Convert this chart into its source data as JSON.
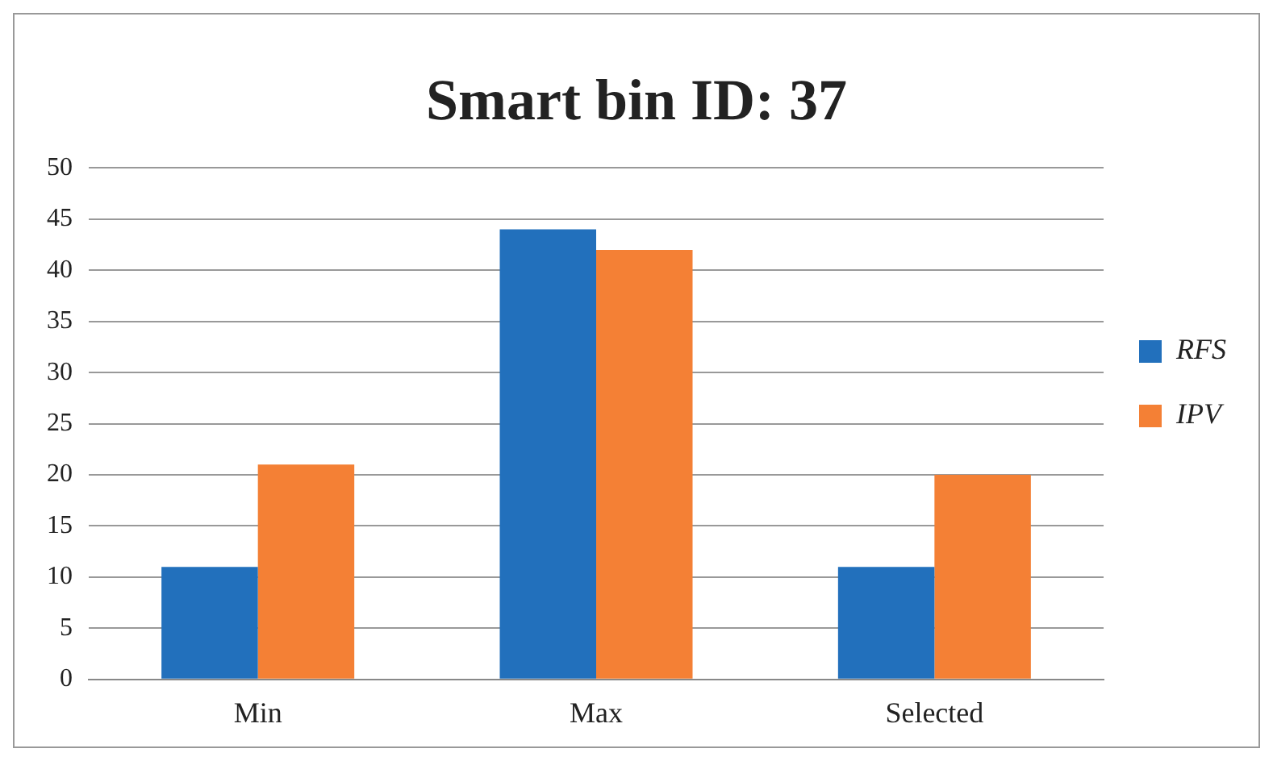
{
  "chart_data": {
    "type": "bar",
    "title": "Smart bin ID: 37",
    "categories": [
      "Min",
      "Max",
      "Selected"
    ],
    "series": [
      {
        "name": "RFS",
        "color": "#2270bc",
        "values": [
          11,
          44,
          11
        ]
      },
      {
        "name": "IPV",
        "color": "#f48035",
        "values": [
          21,
          42,
          20
        ]
      }
    ],
    "ylim": [
      0,
      50
    ],
    "yticks": [
      0,
      5,
      10,
      15,
      20,
      25,
      30,
      35,
      40,
      45,
      50
    ],
    "grid": "y",
    "legend": "right"
  }
}
